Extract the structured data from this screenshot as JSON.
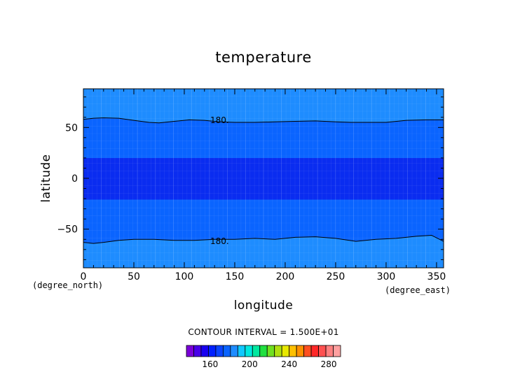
{
  "chart_data": {
    "type": "heatmap",
    "title": "temperature",
    "xlabel": "longitude",
    "ylabel": "latitude",
    "x_unit_text": "(degree_north)",
    "y_unit_text": "(degree_east)",
    "xlim": [
      0,
      357
    ],
    "ylim": [
      -88,
      88
    ],
    "x_ticks": [
      0,
      50,
      100,
      150,
      200,
      250,
      300,
      350
    ],
    "y_ticks": [
      -50,
      0,
      50
    ],
    "contour_interval_text": "CONTOUR INTERVAL = 1.500E+01",
    "contour_labels": [
      {
        "text": "180.",
        "x": 125,
        "y": 57
      },
      {
        "text": "180.",
        "x": 125,
        "y": -62
      }
    ],
    "bands": [
      {
        "name": "north-outer",
        "lat_from": 57,
        "lat_to": 88,
        "color": "#1e8cff"
      },
      {
        "name": "north-mid",
        "lat_from": 20,
        "lat_to": 57,
        "color": "#0a64ff"
      },
      {
        "name": "equatorial",
        "lat_from": -21,
        "lat_to": 20,
        "color": "#0a2cf0"
      },
      {
        "name": "south-mid",
        "lat_from": -61,
        "lat_to": -21,
        "color": "#0a64ff"
      },
      {
        "name": "south-outer",
        "lat_from": -88,
        "lat_to": -61,
        "color": "#1e8cff"
      }
    ],
    "contour_north": [
      [
        0,
        58
      ],
      [
        10,
        59
      ],
      [
        20,
        59.5
      ],
      [
        35,
        59
      ],
      [
        50,
        57
      ],
      [
        65,
        55
      ],
      [
        75,
        54.5
      ],
      [
        90,
        56
      ],
      [
        105,
        57.5
      ],
      [
        120,
        57
      ],
      [
        135,
        55.5
      ],
      [
        150,
        55
      ],
      [
        170,
        55
      ],
      [
        190,
        55.5
      ],
      [
        210,
        56
      ],
      [
        230,
        56.5
      ],
      [
        250,
        55.5
      ],
      [
        265,
        55
      ],
      [
        280,
        55
      ],
      [
        300,
        55
      ],
      [
        320,
        57
      ],
      [
        340,
        57.5
      ],
      [
        357,
        57.5
      ]
    ],
    "contour_south": [
      [
        0,
        -63
      ],
      [
        10,
        -64
      ],
      [
        20,
        -63
      ],
      [
        35,
        -61
      ],
      [
        50,
        -60
      ],
      [
        70,
        -60
      ],
      [
        90,
        -61
      ],
      [
        110,
        -61
      ],
      [
        130,
        -60
      ],
      [
        150,
        -60
      ],
      [
        170,
        -59
      ],
      [
        190,
        -60
      ],
      [
        210,
        -58
      ],
      [
        230,
        -57.5
      ],
      [
        250,
        -59
      ],
      [
        270,
        -62
      ],
      [
        290,
        -60
      ],
      [
        310,
        -59
      ],
      [
        330,
        -57
      ],
      [
        345,
        -56
      ],
      [
        357,
        -62
      ]
    ],
    "colorbar": {
      "tick_labels": [
        "160",
        "200",
        "240",
        "280"
      ],
      "tick_values": [
        160,
        200,
        240,
        280
      ],
      "min": 136,
      "max": 292,
      "colors": [
        "#7a00d8",
        "#4800e8",
        "#1800f0",
        "#0020ff",
        "#0a44ff",
        "#0a64ff",
        "#1e8cff",
        "#10c8ff",
        "#00e8e0",
        "#00e8a0",
        "#20e040",
        "#70e020",
        "#b0e010",
        "#e8e800",
        "#ffc000",
        "#ff9000",
        "#ff5020",
        "#ff2828",
        "#ff5050",
        "#ff8080",
        "#ffa0a0"
      ]
    }
  }
}
